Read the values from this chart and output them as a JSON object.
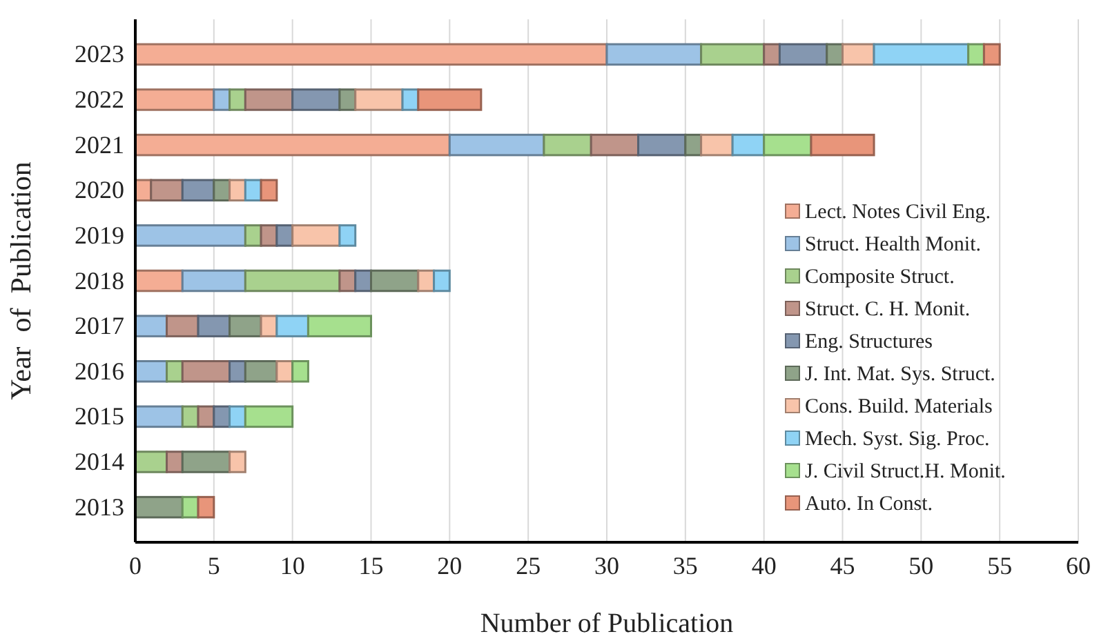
{
  "chart_data": {
    "type": "bar",
    "orientation": "horizontal",
    "stacked": true,
    "xlabel": "Number of Publication",
    "ylabel": "Year  of  Publication",
    "categories": [
      "2023",
      "2022",
      "2021",
      "2020",
      "2019",
      "2018",
      "2017",
      "2016",
      "2015",
      "2014",
      "2013"
    ],
    "xlim": [
      0,
      60
    ],
    "xticks": [
      0,
      5,
      10,
      15,
      20,
      25,
      30,
      35,
      40,
      45,
      50,
      55,
      60
    ],
    "grid": "x",
    "legend": "bottom right",
    "series": [
      {
        "name": "Lect. Notes Civil Eng.",
        "color": "#f4ad94",
        "values": [
          30,
          5,
          20,
          1,
          0,
          3,
          0,
          0,
          0,
          0,
          0
        ]
      },
      {
        "name": "Struct. Health Monit.",
        "color": "#9dc3e6",
        "values": [
          6,
          1,
          6,
          0,
          7,
          4,
          2,
          2,
          3,
          0,
          0
        ]
      },
      {
        "name": "Composite Struct.",
        "color": "#a9d18e",
        "values": [
          4,
          1,
          3,
          0,
          1,
          6,
          0,
          1,
          1,
          2,
          0
        ]
      },
      {
        "name": "Struct. C. H. Monit.",
        "color": "#c0958a",
        "values": [
          1,
          3,
          3,
          2,
          1,
          1,
          2,
          3,
          1,
          1,
          0
        ]
      },
      {
        "name": "Eng. Structures",
        "color": "#8497b0",
        "values": [
          3,
          3,
          3,
          2,
          1,
          1,
          2,
          1,
          1,
          0,
          0
        ]
      },
      {
        "name": "J. Int. Mat. Sys. Struct.",
        "color": "#8fa389",
        "values": [
          1,
          1,
          1,
          1,
          0,
          3,
          2,
          2,
          0,
          3,
          3
        ]
      },
      {
        "name": "Cons. Build. Materials",
        "color": "#f8c4aa",
        "values": [
          2,
          3,
          2,
          1,
          3,
          1,
          1,
          1,
          0,
          1,
          0
        ]
      },
      {
        "name": "Mech. Syst. Sig. Proc.",
        "color": "#8fd3f5",
        "values": [
          6,
          1,
          2,
          1,
          1,
          1,
          2,
          0,
          1,
          0,
          0
        ]
      },
      {
        "name": "J. Civil Struct.H. Monit.",
        "color": "#a6e08e",
        "values": [
          1,
          0,
          3,
          0,
          0,
          0,
          4,
          1,
          3,
          0,
          1
        ]
      },
      {
        "name": "Auto. In Const.",
        "color": "#e8957a",
        "values": [
          1,
          4,
          4,
          1,
          0,
          0,
          0,
          0,
          0,
          0,
          1
        ]
      }
    ]
  }
}
